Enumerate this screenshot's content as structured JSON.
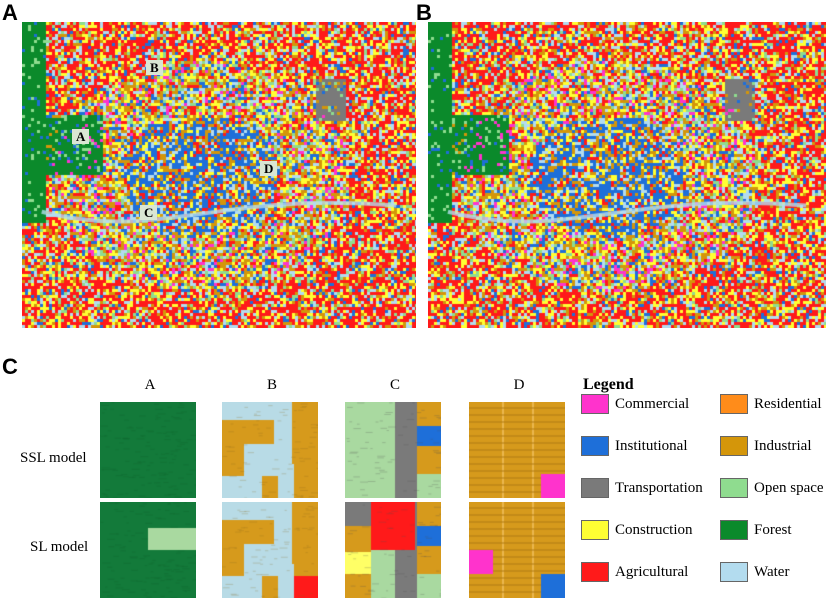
{
  "panels": {
    "a": "A",
    "b": "B",
    "c": "C"
  },
  "markers": [
    "A",
    "B",
    "C",
    "D"
  ],
  "column_headers": [
    "A",
    "B",
    "C",
    "D"
  ],
  "row_headers": [
    "SSL model",
    "SL model"
  ],
  "legend": {
    "title": "Legend",
    "items": [
      {
        "label": "Commercial",
        "color": "#ff33cc"
      },
      {
        "label": "Residential",
        "color": "#ff8c1a"
      },
      {
        "label": "Institutional",
        "color": "#1e6fd9"
      },
      {
        "label": "Industrial",
        "color": "#d4960a"
      },
      {
        "label": "Transportation",
        "color": "#7a7a7a"
      },
      {
        "label": "Open space",
        "color": "#8fdc8f"
      },
      {
        "label": "Construction",
        "color": "#ffff33"
      },
      {
        "label": "Forest",
        "color": "#0b8a2b"
      },
      {
        "label": "Agricultural",
        "color": "#ff1a1a"
      },
      {
        "label": "Water",
        "color": "#b3dcef"
      }
    ]
  }
}
